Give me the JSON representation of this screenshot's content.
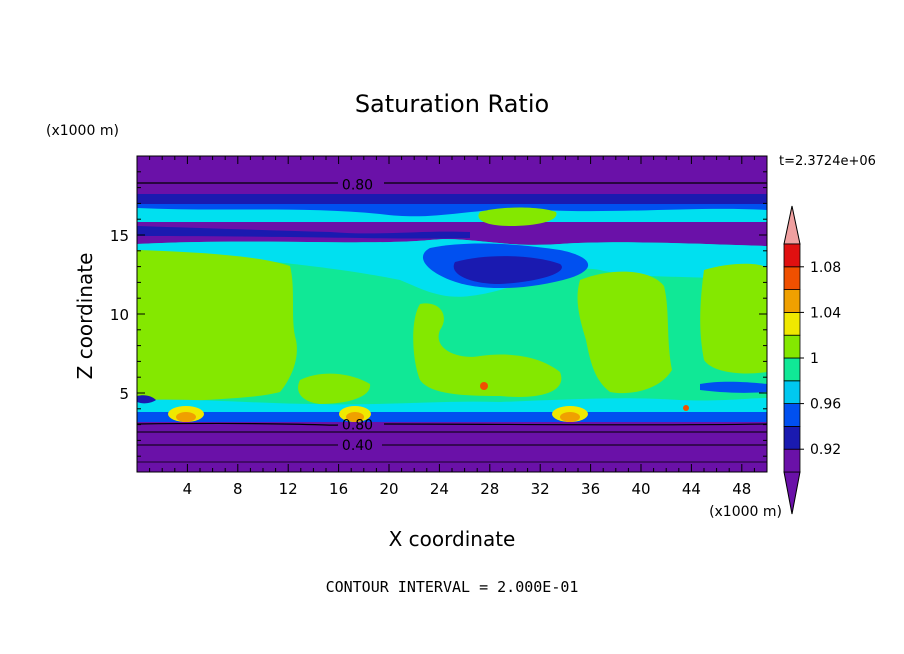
{
  "chart_data": {
    "type": "heatmap",
    "title": "Saturation Ratio",
    "time_label": "t=2.3724e+06",
    "xlabel": "X coordinate",
    "ylabel": "Z coordinate",
    "x_unit": "(x1000 m)",
    "z_unit": "(x1000 m)",
    "xlim": [
      0,
      50
    ],
    "ylim": [
      0,
      20
    ],
    "x_ticks": [
      4,
      8,
      12,
      16,
      20,
      24,
      28,
      32,
      36,
      40,
      44,
      48
    ],
    "y_ticks": [
      5,
      10,
      15
    ],
    "contour_interval_label": "CONTOUR INTERVAL = 2.000E-01",
    "contour_labels": [
      {
        "text": "0.80",
        "x": 17.5,
        "z": 18.2
      },
      {
        "text": "0.80",
        "x": 17.5,
        "z": 3.0
      },
      {
        "text": "0.40",
        "x": 17.5,
        "z": 1.7
      }
    ],
    "colorbar": {
      "tick_labels": [
        "1.08",
        "1.04",
        "1",
        "0.96",
        "0.92"
      ],
      "tick_values": [
        1.08,
        1.04,
        1.0,
        0.96,
        0.92
      ],
      "levels": [
        0.92,
        0.94,
        0.96,
        0.98,
        1.0,
        1.02,
        1.04,
        1.06,
        1.08,
        1.1
      ],
      "colors": [
        "#6a11a8",
        "#1a1ab0",
        "#0050f0",
        "#00c8f0",
        "#10e896",
        "#84e800",
        "#f0e800",
        "#f0a000",
        "#f05000",
        "#e01010",
        "#f0a0a0"
      ],
      "lower_color": "#6a11a8",
      "upper_color": "#f0a0a0"
    },
    "field_colors": {
      "purple": "#6a11a8",
      "darkblue": "#1a1ab0",
      "blue": "#0050f0",
      "cyan": "#00e0f0",
      "sea": "#10e896",
      "lime": "#84e800",
      "yellow": "#f0e800",
      "orange": "#f0a000",
      "red": "#f05000"
    }
  }
}
